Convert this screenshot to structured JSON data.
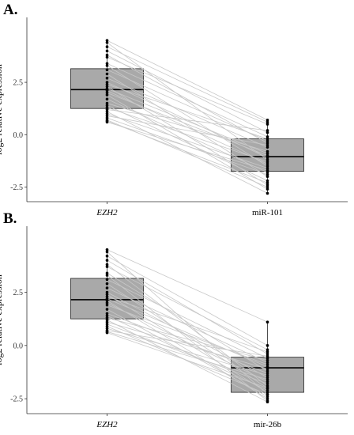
{
  "chart_data": [
    {
      "panel": "A.",
      "type": "box",
      "title": "",
      "xlabel": "",
      "ylabel": "log2 relative expression",
      "ylim": [
        -3.2,
        5.6
      ],
      "yticks": [
        "-2.5",
        "0.0",
        "2.5"
      ],
      "ytick_values": [
        -2.5,
        0.0,
        2.5
      ],
      "categories": [
        "EZH2",
        "miR-101"
      ],
      "category_italic": [
        true,
        false
      ],
      "grid": false,
      "legend": "none",
      "colors": {
        "box": "#a9a9a9",
        "line": "#c8c8c8",
        "point": "#000000"
      },
      "boxes": [
        {
          "category": "EZH2",
          "min": 0.6,
          "q1": 1.25,
          "median": 2.15,
          "q3": 3.15,
          "max": 4.5
        },
        {
          "category": "miR-101",
          "min": -2.85,
          "q1": -1.75,
          "median": -1.05,
          "q3": -0.2,
          "max": 0.7
        }
      ],
      "pairs": [
        [
          4.5,
          0.7
        ],
        [
          4.4,
          -1.2
        ],
        [
          4.2,
          0.6
        ],
        [
          4.0,
          0.1
        ],
        [
          3.8,
          -0.4
        ],
        [
          3.7,
          0.5
        ],
        [
          3.4,
          -0.1
        ],
        [
          3.3,
          -1.5
        ],
        [
          3.1,
          -0.3
        ],
        [
          2.9,
          -2.0
        ],
        [
          2.7,
          -0.6
        ],
        [
          2.5,
          -1.1
        ],
        [
          2.4,
          -0.2
        ],
        [
          2.3,
          -2.4
        ],
        [
          2.2,
          -0.9
        ],
        [
          2.1,
          -1.4
        ],
        [
          2.0,
          -1.0
        ],
        [
          1.9,
          -2.6
        ],
        [
          1.7,
          -1.8
        ],
        [
          1.5,
          -0.8
        ],
        [
          1.4,
          -2.2
        ],
        [
          1.3,
          -1.3
        ],
        [
          1.2,
          0.2
        ],
        [
          1.1,
          -2.8
        ],
        [
          1.0,
          -1.6
        ],
        [
          0.9,
          -0.5
        ],
        [
          0.8,
          -1.9
        ],
        [
          0.7,
          -2.5
        ],
        [
          0.6,
          -1.7
        ],
        [
          0.65,
          -2.3
        ]
      ]
    },
    {
      "panel": "B.",
      "type": "box",
      "title": "",
      "xlabel": "",
      "ylabel": "log2 relative expression",
      "ylim": [
        -3.2,
        5.6
      ],
      "yticks": [
        "-2.5",
        "0.0",
        "2.5"
      ],
      "ytick_values": [
        -2.5,
        0.0,
        2.5
      ],
      "categories": [
        "EZH2",
        "mir-26b"
      ],
      "category_italic": [
        true,
        false
      ],
      "grid": false,
      "legend": "none",
      "colors": {
        "box": "#a9a9a9",
        "line": "#c8c8c8",
        "point": "#000000"
      },
      "boxes": [
        {
          "category": "EZH2",
          "min": 0.6,
          "q1": 1.25,
          "median": 2.15,
          "q3": 3.15,
          "max": 4.5
        },
        {
          "category": "mir-26b",
          "min": -2.65,
          "q1": -2.2,
          "median": -1.05,
          "q3": -0.55,
          "max": 1.1
        }
      ],
      "pairs": [
        [
          4.5,
          1.1
        ],
        [
          4.4,
          -2.3
        ],
        [
          4.2,
          0.0
        ],
        [
          4.0,
          -0.4
        ],
        [
          3.8,
          -1.9
        ],
        [
          3.7,
          -0.2
        ],
        [
          3.4,
          -1.2
        ],
        [
          3.3,
          -2.6
        ],
        [
          3.1,
          -0.6
        ],
        [
          2.9,
          -2.0
        ],
        [
          2.7,
          -0.8
        ],
        [
          2.5,
          -1.5
        ],
        [
          2.4,
          -2.2
        ],
        [
          2.3,
          -0.3
        ],
        [
          2.2,
          -1.0
        ],
        [
          2.1,
          -2.5
        ],
        [
          2.0,
          -1.7
        ],
        [
          1.9,
          -0.9
        ],
        [
          1.7,
          -2.4
        ],
        [
          1.5,
          -1.3
        ],
        [
          1.4,
          -2.1
        ],
        [
          1.3,
          -0.7
        ],
        [
          1.2,
          -2.65
        ],
        [
          1.1,
          -1.1
        ],
        [
          1.0,
          -1.8
        ],
        [
          0.9,
          -2.3
        ],
        [
          0.8,
          -1.4
        ],
        [
          0.7,
          -0.5
        ],
        [
          0.6,
          -2.0
        ],
        [
          0.65,
          -1.6
        ]
      ]
    }
  ]
}
